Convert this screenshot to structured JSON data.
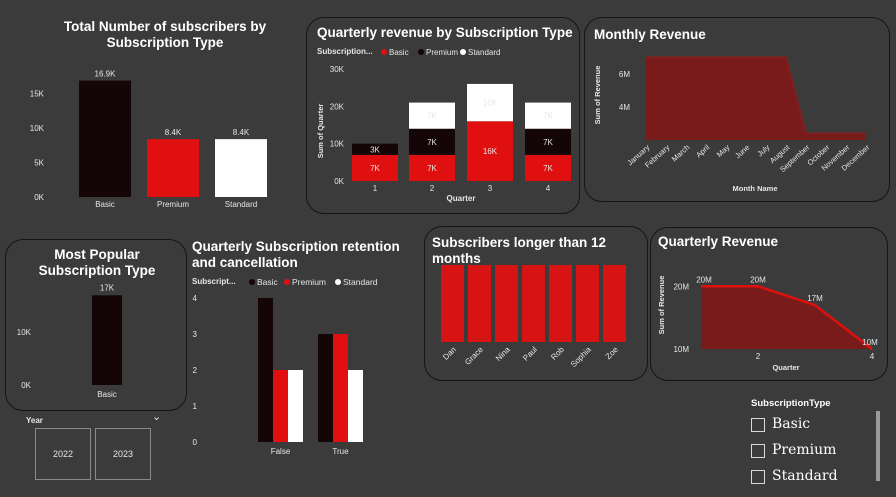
{
  "colors": {
    "basic": "#140606",
    "premium": "#e01010",
    "standard": "#ffffff",
    "monthly_area": "#7a1b1b",
    "monthly_line": "#8c1c1c",
    "q_area": "#7a1b1b",
    "q_line": "#dd1010",
    "longer": "#d71414",
    "bg": "#3b3b3b"
  },
  "charts": {
    "subscribers": {
      "title": "Total Number of subscribers by Subscription Type"
    },
    "quarterly_type": {
      "title": "Quarterly revenue by Subscription Type",
      "legend_title": "Subscription...",
      "ylabel": "Sum of Quarter",
      "xlabel": "Quarter"
    },
    "monthly": {
      "title": "Monthly Revenue",
      "ylabel": "Sum of Revenue",
      "xlabel": "Month Name"
    },
    "popular": {
      "title": "Most Popular Subscription Type"
    },
    "retention": {
      "title": "Quarterly Subscription retention and cancellation",
      "legend_title": "Subscript..."
    },
    "longer": {
      "title": "Subscribers longer than 12 months"
    },
    "quarterly_rev": {
      "title": "Quarterly Revenue",
      "ylabel": "Sum of Revenue",
      "xlabel": "Quarter"
    }
  },
  "slicer_year": {
    "label": "Year",
    "chevron": "⌄",
    "options": [
      "2022",
      "2023"
    ]
  },
  "slicer_type": {
    "title": "SubscriptionType",
    "options": [
      "Basic",
      "Premium",
      "Standard"
    ]
  },
  "chart_data": [
    {
      "id": "subscribers",
      "type": "bar",
      "title": "Total Number of subscribers by Subscription Type",
      "categories": [
        "Basic",
        "Premium",
        "Standard"
      ],
      "values": [
        16900,
        8400,
        8400
      ],
      "labels": [
        "16.9K",
        "8.4K",
        "8.4K"
      ],
      "yticks": [
        0,
        5000,
        10000,
        15000
      ],
      "ytick_labels": [
        "0K",
        "5K",
        "10K",
        "15K"
      ],
      "ylim": [
        0,
        18000
      ]
    },
    {
      "id": "quarterly_type",
      "type": "bar",
      "stacked": true,
      "title": "Quarterly revenue by Subscription Type",
      "xlabel": "Quarter",
      "ylabel": "Sum of Quarter",
      "categories": [
        "1",
        "2",
        "3",
        "4"
      ],
      "series": [
        {
          "name": "Basic",
          "values": [
            7000,
            7000,
            16000,
            7000
          ],
          "labels": [
            "7K",
            "7K",
            "16K",
            "7K"
          ]
        },
        {
          "name": "Premium",
          "values": [
            3000,
            7000,
            0,
            7000
          ],
          "labels": [
            "3K",
            "7K",
            "",
            "7K"
          ]
        },
        {
          "name": "Standard",
          "values": [
            0,
            7000,
            10000,
            7000
          ],
          "labels": [
            "",
            "7K",
            "10K",
            "7K"
          ]
        }
      ],
      "yticks": [
        0,
        10000,
        20000,
        30000
      ],
      "ytick_labels": [
        "0K",
        "10K",
        "20K",
        "30K"
      ],
      "ylim": [
        0,
        30000
      ],
      "legend": "top-left"
    },
    {
      "id": "monthly",
      "type": "area",
      "title": "Monthly Revenue",
      "xlabel": "Month Name",
      "ylabel": "Sum of Revenue",
      "categories": [
        "January",
        "February",
        "March",
        "April",
        "May",
        "June",
        "July",
        "August",
        "September",
        "October",
        "November",
        "December"
      ],
      "values": [
        7000000,
        7000000,
        7000000,
        7000000,
        7000000,
        7000000,
        7000000,
        7000000,
        2400000,
        2400000,
        2400000,
        2400000
      ],
      "yticks": [
        4000000,
        6000000
      ],
      "ytick_labels": [
        "4M",
        "6M"
      ],
      "ylim": [
        2000000,
        7200000
      ]
    },
    {
      "id": "popular",
      "type": "bar",
      "title": "Most Popular Subscription Type",
      "categories": [
        "Basic"
      ],
      "values": [
        17000
      ],
      "labels": [
        "17K"
      ],
      "yticks": [
        0,
        10000
      ],
      "ytick_labels": [
        "0K",
        "10K"
      ],
      "ylim": [
        0,
        18000
      ]
    },
    {
      "id": "retention",
      "type": "bar",
      "title": "Quarterly Subscription retention and cancellation",
      "categories": [
        "False",
        "True"
      ],
      "series": [
        {
          "name": "Basic",
          "values": [
            4,
            3
          ]
        },
        {
          "name": "Premium",
          "values": [
            2,
            3
          ]
        },
        {
          "name": "Standard",
          "values": [
            2,
            2
          ]
        }
      ],
      "yticks": [
        0,
        1,
        2,
        3,
        4
      ],
      "ylim": [
        0,
        4.2
      ],
      "legend": "top-left"
    },
    {
      "id": "longer",
      "type": "bar",
      "title": "Subscribers longer than 12 months",
      "categories": [
        "Dan",
        "Grace",
        "Nina",
        "Paul",
        "Rob",
        "Sophia",
        "Zoe"
      ],
      "values": [
        1,
        1,
        1,
        1,
        1,
        1,
        1
      ]
    },
    {
      "id": "quarterly_rev",
      "type": "area",
      "title": "Quarterly Revenue",
      "xlabel": "Quarter",
      "ylabel": "Sum of Revenue",
      "x": [
        1,
        2,
        3,
        4
      ],
      "values": [
        20000000,
        20000000,
        17000000,
        10000000
      ],
      "labels": [
        "20M",
        "20M",
        "17M",
        "10M"
      ],
      "xticks": [
        2,
        4
      ],
      "xtick_labels": [
        "2",
        "4"
      ],
      "yticks": [
        10000000,
        20000000
      ],
      "ytick_labels": [
        "10M",
        "20M"
      ],
      "ylim": [
        10000000,
        21000000
      ]
    }
  ]
}
